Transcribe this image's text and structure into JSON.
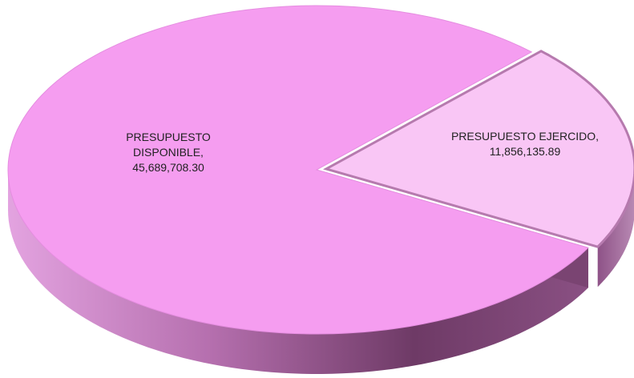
{
  "chart_data": {
    "type": "pie",
    "categories": [
      "PRESUPUESTO DISPONIBLE,",
      "PRESUPUESTO EJERCIDO,"
    ],
    "values": [
      45689708.3,
      11856135.89
    ],
    "value_labels": [
      "45,689,708.30",
      "11,856,135.89"
    ],
    "colors": [
      "#f59df0",
      "#f9c6f5"
    ]
  }
}
